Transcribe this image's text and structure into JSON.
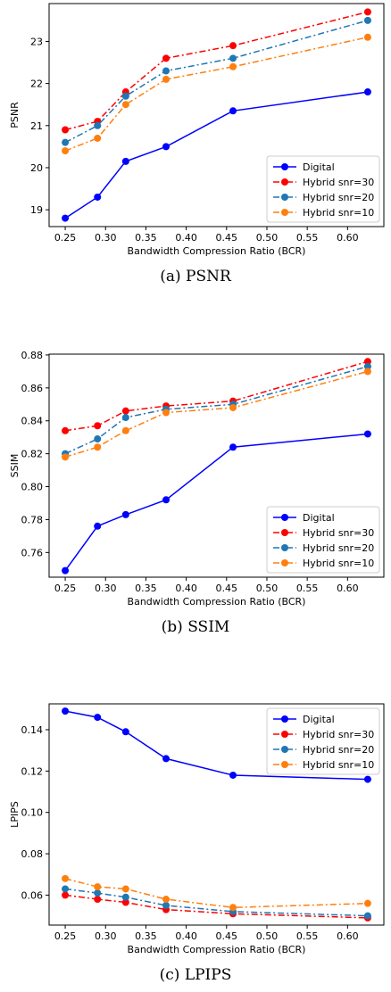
{
  "chart_data": [
    {
      "type": "line",
      "caption": "(a) PSNR",
      "xlabel": "Bandwidth Compression Ratio (BCR)",
      "ylabel": "PSNR",
      "xlim": [
        0.23,
        0.645
      ],
      "ylim": [
        18.6,
        23.9
      ],
      "xticks": [
        0.25,
        0.3,
        0.35,
        0.4,
        0.45,
        0.5,
        0.55,
        0.6
      ],
      "xtick_labels": [
        "0.25",
        "0.30",
        "0.35",
        "0.40",
        "0.45",
        "0.50",
        "0.55",
        "0.60"
      ],
      "yticks": [
        19,
        20,
        21,
        22,
        23
      ],
      "ytick_labels": [
        "19",
        "20",
        "21",
        "22",
        "23"
      ],
      "legend": "lower-right",
      "x": [
        0.25,
        0.29,
        0.325,
        0.375,
        0.458,
        0.625
      ],
      "series": [
        {
          "name": "Digital",
          "values": [
            18.8,
            19.3,
            20.15,
            20.5,
            21.35,
            21.8
          ],
          "color": "#0000ff",
          "style": "solid"
        },
        {
          "name": "Hybrid snr=30",
          "values": [
            20.9,
            21.1,
            21.8,
            22.6,
            22.9,
            23.7
          ],
          "color": "#ff0000",
          "style": "dashdot"
        },
        {
          "name": "Hybrid snr=20",
          "values": [
            20.6,
            21.0,
            21.7,
            22.3,
            22.6,
            23.5
          ],
          "color": "#1f77b4",
          "style": "dashdot"
        },
        {
          "name": "Hybrid snr=10",
          "values": [
            20.4,
            20.7,
            21.5,
            22.1,
            22.4,
            23.1
          ],
          "color": "#ff7f0e",
          "style": "dashdot"
        }
      ]
    },
    {
      "type": "line",
      "caption": "(b) SSIM",
      "xlabel": "Bandwidth Compression Ratio (BCR)",
      "ylabel": "SSIM",
      "xlim": [
        0.23,
        0.645
      ],
      "ylim": [
        0.745,
        0.8805
      ],
      "xticks": [
        0.25,
        0.3,
        0.35,
        0.4,
        0.45,
        0.5,
        0.55,
        0.6
      ],
      "xtick_labels": [
        "0.25",
        "0.30",
        "0.35",
        "0.40",
        "0.45",
        "0.50",
        "0.55",
        "0.60"
      ],
      "yticks": [
        0.76,
        0.78,
        0.8,
        0.82,
        0.84,
        0.86,
        0.88
      ],
      "ytick_labels": [
        "0.76",
        "0.78",
        "0.80",
        "0.82",
        "0.84",
        "0.86",
        "0.88"
      ],
      "legend": "lower-right",
      "x": [
        0.25,
        0.29,
        0.325,
        0.375,
        0.458,
        0.625
      ],
      "series": [
        {
          "name": "Digital",
          "values": [
            0.749,
            0.776,
            0.783,
            0.792,
            0.824,
            0.832
          ],
          "color": "#0000ff",
          "style": "solid"
        },
        {
          "name": "Hybrid snr=30",
          "values": [
            0.834,
            0.837,
            0.846,
            0.849,
            0.852,
            0.876
          ],
          "color": "#ff0000",
          "style": "dashdot"
        },
        {
          "name": "Hybrid snr=20",
          "values": [
            0.82,
            0.829,
            0.842,
            0.847,
            0.85,
            0.873
          ],
          "color": "#1f77b4",
          "style": "dashdot"
        },
        {
          "name": "Hybrid snr=10",
          "values": [
            0.818,
            0.824,
            0.834,
            0.845,
            0.848,
            0.87
          ],
          "color": "#ff7f0e",
          "style": "dashdot"
        }
      ]
    },
    {
      "type": "line",
      "caption": "(c) LPIPS",
      "xlabel": "Bandwidth Compression Ratio (BCR)",
      "ylabel": "LPIPS",
      "xlim": [
        0.23,
        0.645
      ],
      "ylim": [
        0.0455,
        0.1525
      ],
      "xticks": [
        0.25,
        0.3,
        0.35,
        0.4,
        0.45,
        0.5,
        0.55,
        0.6
      ],
      "xtick_labels": [
        "0.25",
        "0.30",
        "0.35",
        "0.40",
        "0.45",
        "0.50",
        "0.55",
        "0.60"
      ],
      "yticks": [
        0.06,
        0.08,
        0.1,
        0.12,
        0.14
      ],
      "ytick_labels": [
        "0.06",
        "0.08",
        "0.10",
        "0.12",
        "0.14"
      ],
      "legend": "top-right",
      "x": [
        0.25,
        0.29,
        0.325,
        0.375,
        0.458,
        0.625
      ],
      "series": [
        {
          "name": "Digital",
          "values": [
            0.149,
            0.146,
            0.139,
            0.126,
            0.118,
            0.116
          ],
          "color": "#0000ff",
          "style": "solid"
        },
        {
          "name": "Hybrid snr=30",
          "values": [
            0.06,
            0.058,
            0.0565,
            0.053,
            0.051,
            0.049
          ],
          "color": "#ff0000",
          "style": "dashdot"
        },
        {
          "name": "Hybrid snr=20",
          "values": [
            0.063,
            0.061,
            0.059,
            0.055,
            0.052,
            0.05
          ],
          "color": "#1f77b4",
          "style": "dashdot"
        },
        {
          "name": "Hybrid snr=10",
          "values": [
            0.068,
            0.064,
            0.063,
            0.058,
            0.054,
            0.056
          ],
          "color": "#ff7f0e",
          "style": "dashdot"
        }
      ]
    }
  ]
}
